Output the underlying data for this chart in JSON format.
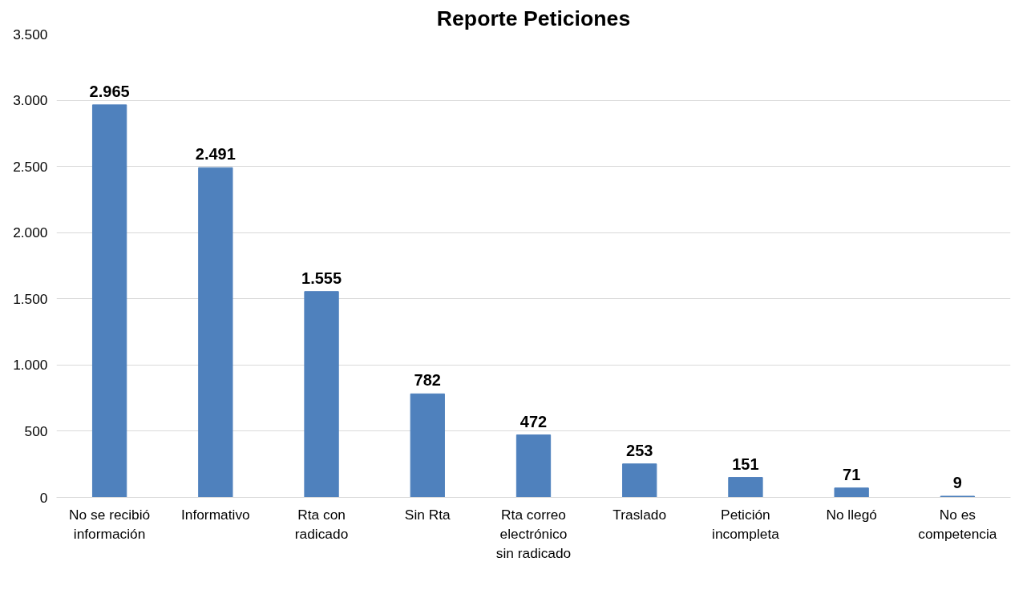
{
  "chart_data": {
    "type": "bar",
    "title": "Reporte Peticiones",
    "categories": [
      "No se recibió información",
      "Informativo",
      "Rta con radicado",
      "Sin Rta",
      "Rta correo electrónico sin radicado",
      "Traslado",
      "Petición incompleta",
      "No llegó",
      "No es competencia"
    ],
    "values": [
      2965,
      2491,
      1555,
      782,
      472,
      253,
      151,
      71,
      9
    ],
    "value_labels": [
      "2.965",
      "2.491",
      "1.555",
      "782",
      "472",
      "253",
      "151",
      "71",
      "9"
    ],
    "color": "#4f81bd",
    "ylim": [
      0,
      3500
    ],
    "yticks": [
      0,
      {
        "value": 500,
        "label": "500"
      },
      {
        "value": 1000,
        "label": "1.000"
      },
      {
        "value": 1500,
        "label": "1.500"
      },
      {
        "value": 2000,
        "label": "2.000"
      },
      {
        "value": 2500,
        "label": "2.500"
      },
      {
        "value": 3000,
        "label": "3.000"
      },
      {
        "value": 3500,
        "label": "3.500"
      }
    ],
    "grid": "y"
  }
}
